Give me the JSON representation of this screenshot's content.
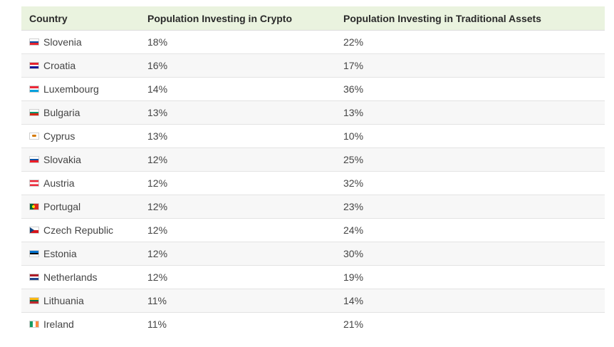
{
  "table": {
    "headers": {
      "country": "Country",
      "crypto": "Population Investing in Crypto",
      "traditional": "Population Investing in Traditional Assets"
    },
    "rows": [
      {
        "country": "Slovenia",
        "crypto": "18%",
        "traditional": "22%"
      },
      {
        "country": "Croatia",
        "crypto": "16%",
        "traditional": "17%"
      },
      {
        "country": "Luxembourg",
        "crypto": "14%",
        "traditional": "36%"
      },
      {
        "country": "Bulgaria",
        "crypto": "13%",
        "traditional": "13%"
      },
      {
        "country": "Cyprus",
        "crypto": "13%",
        "traditional": "10%"
      },
      {
        "country": "Slovakia",
        "crypto": "12%",
        "traditional": "25%"
      },
      {
        "country": "Austria",
        "crypto": "12%",
        "traditional": "32%"
      },
      {
        "country": "Portugal",
        "crypto": "12%",
        "traditional": "23%"
      },
      {
        "country": "Czech Republic",
        "crypto": "12%",
        "traditional": "24%"
      },
      {
        "country": "Estonia",
        "crypto": "12%",
        "traditional": "30%"
      },
      {
        "country": "Netherlands",
        "crypto": "12%",
        "traditional": "19%"
      },
      {
        "country": "Lithuania",
        "crypto": "11%",
        "traditional": "14%"
      },
      {
        "country": "Ireland",
        "crypto": "11%",
        "traditional": "21%"
      }
    ]
  },
  "flags": {
    "slovenia": "slovenia-flag-icon",
    "croatia": "croatia-flag-icon",
    "luxembourg": "luxembourg-flag-icon",
    "bulgaria": "bulgaria-flag-icon",
    "cyprus": "cyprus-flag-icon",
    "slovakia": "slovakia-flag-icon",
    "austria": "austria-flag-icon",
    "portugal": "portugal-flag-icon",
    "czech_republic": "czech-republic-flag-icon",
    "estonia": "estonia-flag-icon",
    "netherlands": "netherlands-flag-icon",
    "lithuania": "lithuania-flag-icon",
    "ireland": "ireland-flag-icon"
  },
  "colors": {
    "header_background": "#eaf3df",
    "row_stripe": "#f7f7f7",
    "row_border": "#e3e3e3"
  }
}
